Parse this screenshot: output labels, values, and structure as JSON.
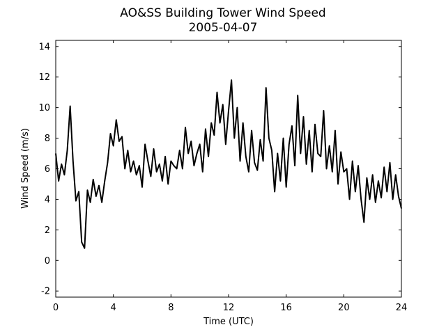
{
  "chart_data": {
    "type": "line",
    "title": "AO&SS Building Tower Wind Speed",
    "subtitle": "2005-04-07",
    "xlabel": "Time (UTC)",
    "ylabel": "Wind Speed (m/s)",
    "xlim": [
      0,
      24
    ],
    "xticks": [
      0,
      4,
      8,
      12,
      16,
      20,
      24
    ],
    "ylim": [
      -2.4,
      14.4
    ],
    "yticks": [
      -2,
      0,
      2,
      4,
      6,
      8,
      10,
      12,
      14
    ],
    "grid": false,
    "x": [
      0,
      0.2,
      0.4,
      0.6,
      0.8,
      1,
      1.2,
      1.4,
      1.6,
      1.8,
      2,
      2.2,
      2.4,
      2.6,
      2.8,
      3,
      3.2,
      3.4,
      3.6,
      3.8,
      4,
      4.2,
      4.4,
      4.6,
      4.8,
      5,
      5.2,
      5.4,
      5.6,
      5.8,
      6,
      6.2,
      6.4,
      6.6,
      6.8,
      7,
      7.2,
      7.4,
      7.6,
      7.8,
      8,
      8.2,
      8.4,
      8.6,
      8.8,
      9,
      9.2,
      9.4,
      9.6,
      9.8,
      10,
      10.2,
      10.4,
      10.6,
      10.8,
      11,
      11.2,
      11.4,
      11.6,
      11.8,
      12,
      12.2,
      12.4,
      12.6,
      12.8,
      13,
      13.2,
      13.4,
      13.6,
      13.8,
      14,
      14.2,
      14.4,
      14.6,
      14.8,
      15,
      15.2,
      15.4,
      15.6,
      15.8,
      16,
      16.2,
      16.4,
      16.6,
      16.8,
      17,
      17.2,
      17.4,
      17.6,
      17.8,
      18,
      18.2,
      18.4,
      18.6,
      18.8,
      19,
      19.2,
      19.4,
      19.6,
      19.8,
      20,
      20.2,
      20.4,
      20.6,
      20.8,
      21,
      21.2,
      21.4,
      21.6,
      21.8,
      22,
      22.2,
      22.4,
      22.6,
      22.8,
      23,
      23.2,
      23.4,
      23.6,
      23.8,
      24
    ],
    "series": [
      {
        "name": "Wind Speed",
        "color": "#000000",
        "values": [
          7.0,
          5.2,
          6.3,
          5.6,
          7.2,
          10.1,
          6.5,
          3.9,
          4.5,
          1.2,
          0.8,
          4.6,
          3.8,
          5.3,
          4.2,
          4.9,
          3.8,
          5.2,
          6.4,
          8.3,
          7.5,
          9.2,
          7.8,
          8.1,
          6.0,
          7.2,
          5.8,
          6.5,
          5.6,
          6.2,
          4.8,
          7.6,
          6.5,
          5.5,
          7.3,
          5.8,
          6.3,
          5.2,
          6.8,
          5.0,
          6.5,
          6.2,
          6.0,
          7.2,
          6.0,
          8.7,
          7.0,
          7.8,
          6.2,
          7.0,
          7.6,
          5.8,
          8.6,
          6.8,
          9.0,
          8.2,
          11.0,
          9.0,
          10.2,
          7.6,
          9.8,
          11.8,
          8.0,
          10.0,
          6.5,
          9.0,
          6.8,
          5.8,
          8.5,
          6.4,
          5.9,
          7.9,
          6.5,
          11.3,
          8.0,
          7.2,
          4.5,
          7.0,
          5.2,
          8.0,
          4.8,
          7.6,
          8.8,
          6.2,
          10.8,
          7.0,
          9.4,
          6.3,
          8.5,
          5.8,
          8.9,
          7.0,
          6.8,
          9.8,
          6.0,
          7.5,
          5.8,
          8.5,
          5.0,
          7.1,
          5.8,
          6.0,
          4.0,
          6.5,
          4.5,
          6.2,
          4.0,
          2.5,
          5.4,
          4.0,
          5.6,
          3.8,
          5.2,
          4.1,
          6.1,
          4.5,
          6.4,
          4.0,
          5.6,
          4.2,
          3.4
        ]
      }
    ]
  }
}
